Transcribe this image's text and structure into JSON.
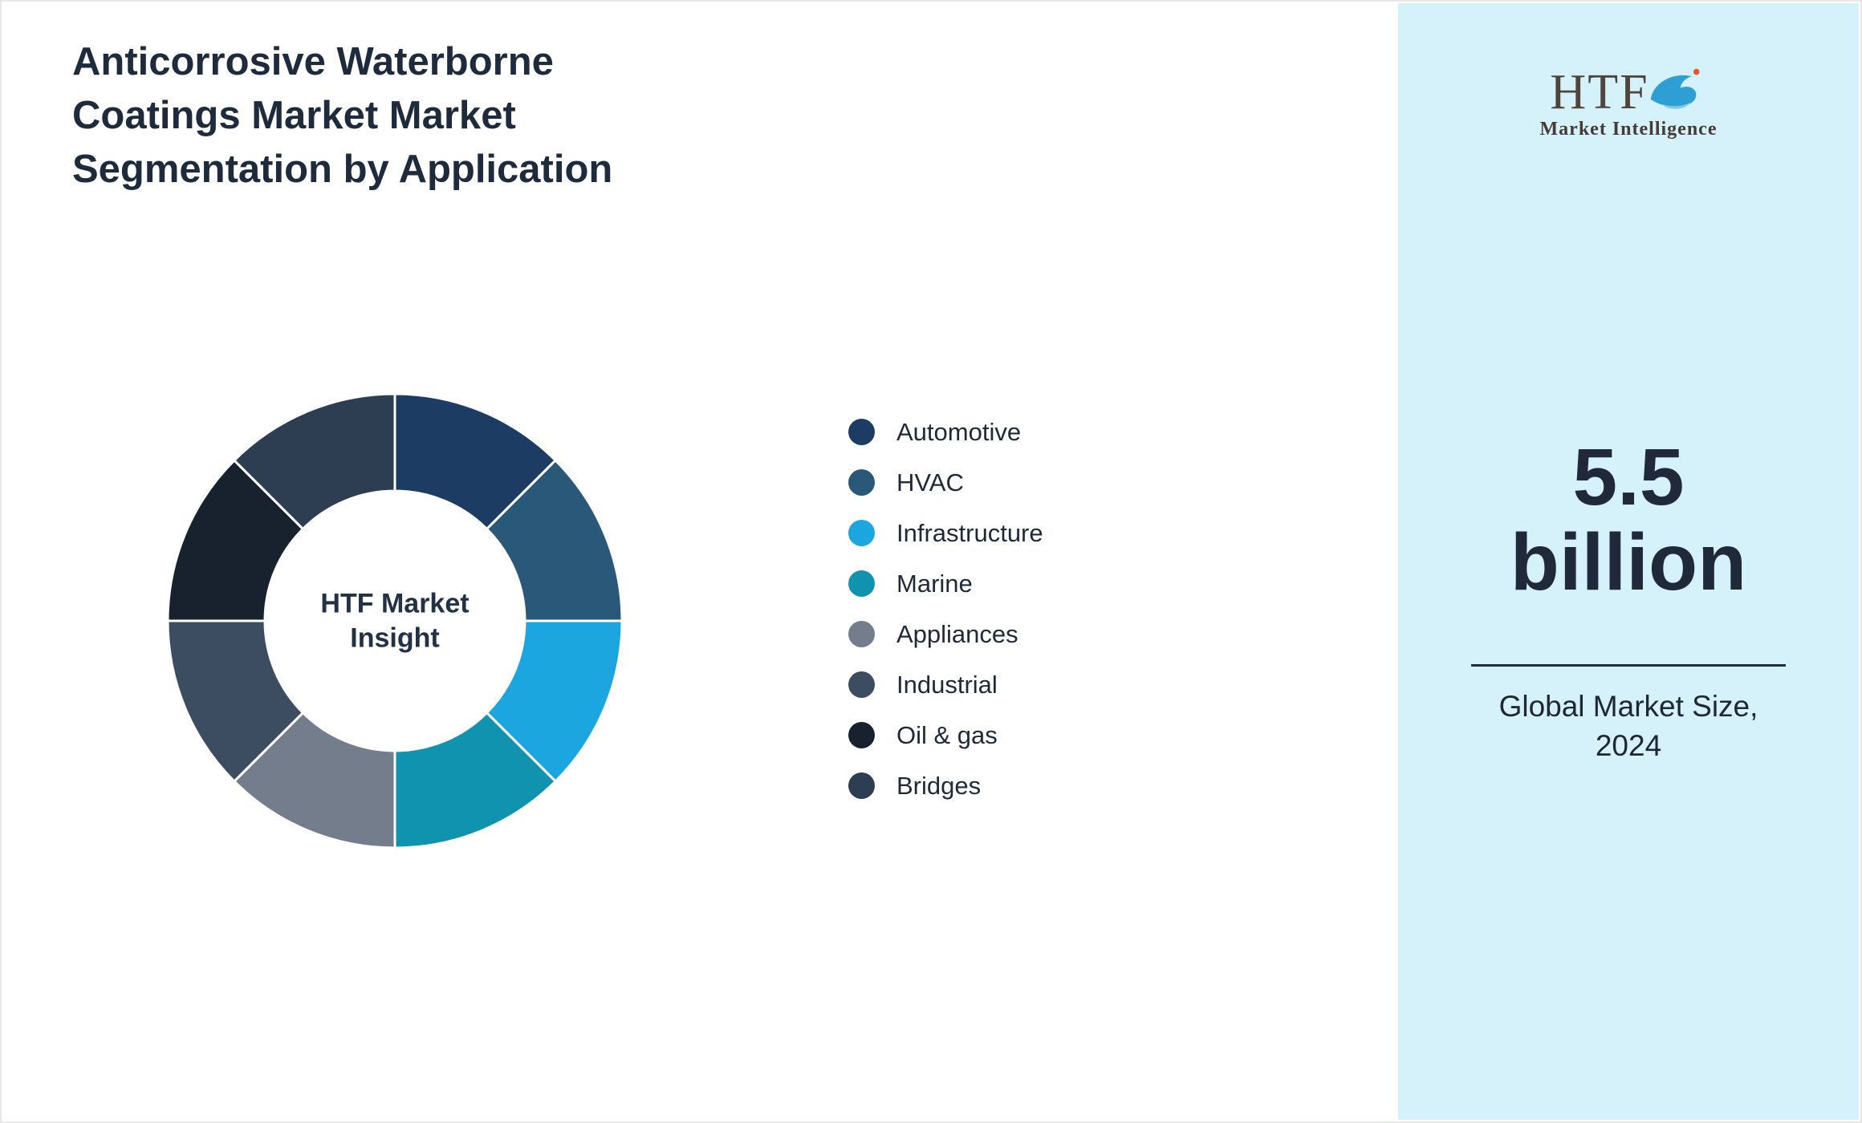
{
  "title": "Anticorrosive Waterborne Coatings Market Market Segmentation by Application",
  "chart_data": {
    "type": "pie",
    "subtype": "donut",
    "center_label": "HTF Market Insight",
    "legend_position": "right",
    "start_angle_deg": 0,
    "segments": [
      {
        "label": "Automotive",
        "value": 12.5,
        "color": "#1d3c63"
      },
      {
        "label": "HVAC",
        "value": 12.5,
        "color": "#2a5878"
      },
      {
        "label": "Infrastructure",
        "value": 12.5,
        "color": "#1ca6e0"
      },
      {
        "label": "Marine",
        "value": 12.5,
        "color": "#0f93ae"
      },
      {
        "label": "Appliances",
        "value": 12.5,
        "color": "#737d8c"
      },
      {
        "label": "Industrial",
        "value": 12.5,
        "color": "#3c4c61"
      },
      {
        "label": "Oil & gas",
        "value": 12.5,
        "color": "#18222f"
      },
      {
        "label": "Bridges",
        "value": 12.5,
        "color": "#2d3d52"
      }
    ]
  },
  "sidebar": {
    "logo": {
      "text": "HTF",
      "subtext": "Market Intelligence"
    },
    "value": "5.5",
    "unit": "billion",
    "caption": "Global Market Size, 2024",
    "panel_color": "#d5f2fb"
  }
}
